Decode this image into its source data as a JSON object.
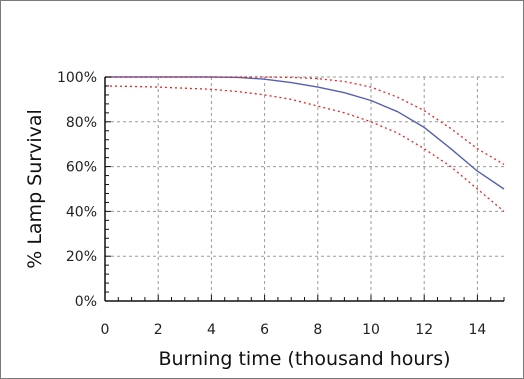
{
  "chart_data": {
    "type": "line",
    "xlabel": "Burning time (thousand hours)",
    "ylabel": "% Lamp Survival",
    "xlim": [
      0,
      15
    ],
    "ylim": [
      0,
      100
    ],
    "x_ticks": [
      "0",
      "2",
      "4",
      "6",
      "8",
      "10",
      "12",
      "14"
    ],
    "y_ticks": [
      "0%",
      "20%",
      "40%",
      "60%",
      "80%",
      "100%"
    ],
    "grid": true,
    "legend": "none",
    "colors": {
      "survival": "#5560b0",
      "bounds": "#ee2222",
      "grid": "#9a9a9a",
      "axis": "#111111"
    },
    "series": [
      {
        "style": "solid",
        "x": [
          0,
          4,
          5,
          6,
          7,
          8,
          9,
          10,
          11,
          12,
          13,
          14,
          15
        ],
        "y": [
          100,
          100,
          99.8,
          99,
          97.5,
          95.5,
          93,
          89.5,
          84.5,
          77.5,
          68,
          58,
          50
        ]
      },
      {
        "style": "dotted",
        "x": [
          0,
          4,
          5,
          6,
          7,
          8,
          9,
          10,
          11,
          12,
          13,
          14,
          15
        ],
        "y": [
          100,
          100,
          100,
          100,
          99.8,
          99.3,
          98,
          95.5,
          91,
          85,
          77,
          68,
          61
        ]
      },
      {
        "style": "dotted",
        "x": [
          0,
          1,
          2,
          3,
          4,
          5,
          6,
          7,
          8,
          9,
          10,
          11,
          12,
          13,
          14,
          15
        ],
        "y": [
          96,
          95.8,
          95.5,
          95,
          94.5,
          93.5,
          92,
          90,
          87,
          84,
          80,
          75,
          68,
          60,
          50,
          40
        ]
      }
    ]
  }
}
